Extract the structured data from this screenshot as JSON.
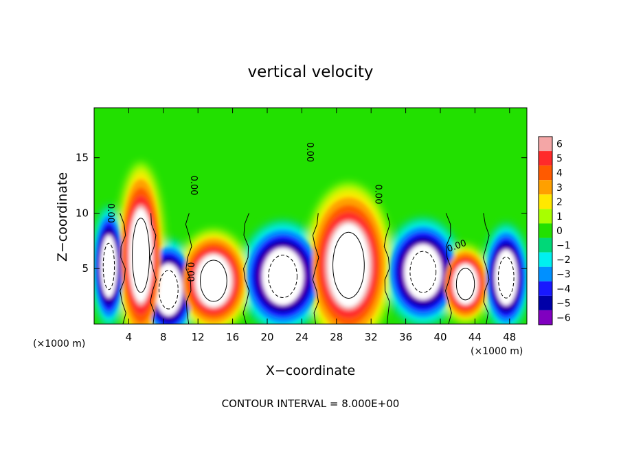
{
  "chart_data": {
    "type": "heatmap",
    "title": "vertical velocity",
    "xlabel": "X−coordinate",
    "ylabel": "Z−coordinate",
    "x_unit_left": "(×1000 m)",
    "x_unit_right": "(×1000 m)",
    "footer": "CONTOUR INTERVAL = 8.000E+00",
    "xlim": [
      0,
      50
    ],
    "ylim": [
      0,
      19.5
    ],
    "x_ticks": [
      4,
      8,
      12,
      16,
      20,
      24,
      28,
      32,
      36,
      40,
      44,
      48
    ],
    "y_ticks": [
      5,
      10,
      15
    ],
    "colorbar": {
      "levels": [
        6,
        5,
        4,
        3,
        2,
        1,
        0,
        -1,
        -2,
        -3,
        -4,
        -5,
        -6
      ],
      "labels": [
        "6",
        "5",
        "4",
        "3",
        "2",
        "1",
        "0",
        "−1",
        "−2",
        "−3",
        "−4",
        "−5",
        "−6"
      ],
      "colors": [
        "#f4a6a6",
        "#ff2a2a",
        "#ff5a00",
        "#ffa000",
        "#ffe800",
        "#a8ff00",
        "#22e000",
        "#00d878",
        "#00f0f0",
        "#0090ff",
        "#1818ff",
        "#0000a8",
        "#8000c0"
      ]
    },
    "contour_labels": [
      {
        "text": "0.00",
        "x": 1.6,
        "y": 10.0,
        "angle": 90
      },
      {
        "text": "0.00",
        "x": 11.2,
        "y": 12.5,
        "angle": 90
      },
      {
        "text": "0.00",
        "x": 10.8,
        "y": 4.7,
        "angle": 90
      },
      {
        "text": "0.00",
        "x": 24.6,
        "y": 15.5,
        "angle": 90
      },
      {
        "text": "0.00",
        "x": 32.5,
        "y": 11.7,
        "angle": 90
      },
      {
        "text": "0.00",
        "x": 42.0,
        "y": 6.8,
        "angle": -20
      }
    ],
    "updrafts": [
      {
        "x": 5.4,
        "z": 6.2,
        "rx": 1.8,
        "rz": 5.4,
        "peak": 6
      },
      {
        "x": 13.8,
        "z": 3.9,
        "rx": 2.8,
        "rz": 3.0,
        "peak": 6
      },
      {
        "x": 29.4,
        "z": 5.3,
        "rx": 3.3,
        "rz": 4.8,
        "peak": 6
      },
      {
        "x": 42.9,
        "z": 3.6,
        "rx": 1.9,
        "rz": 2.3,
        "peak": 6
      }
    ],
    "downdrafts": [
      {
        "x": 1.7,
        "z": 5.2,
        "rx": 1.3,
        "rz": 3.6,
        "peak": -6
      },
      {
        "x": 8.6,
        "z": 3.1,
        "rx": 2.2,
        "rz": 3.0,
        "peak": -6
      },
      {
        "x": 21.8,
        "z": 4.3,
        "rx": 3.3,
        "rz": 3.3,
        "peak": -6
      },
      {
        "x": 38.0,
        "z": 4.7,
        "rx": 3.0,
        "rz": 3.2,
        "peak": -6
      },
      {
        "x": 47.6,
        "z": 4.2,
        "rx": 1.8,
        "rz": 3.2,
        "peak": -6
      }
    ]
  }
}
